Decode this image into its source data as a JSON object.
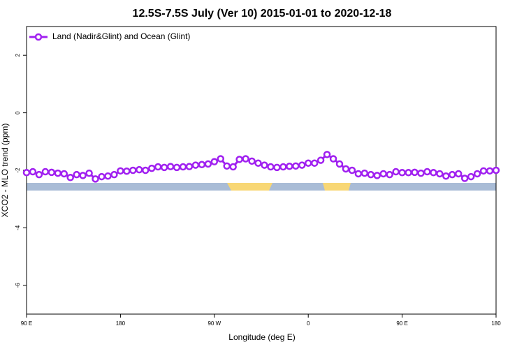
{
  "chart_data": {
    "type": "line",
    "title": "12.5S-7.5S July (Ver 10)   2015-01-01 to 2020-12-18",
    "xlabel": "Longitude (deg E)",
    "ylabel": "XCO2 - MLO trend (ppm)",
    "xlim": [
      90,
      540
    ],
    "ylim": [
      -7,
      3
    ],
    "xticks": [
      {
        "value": 90,
        "label": "90 E"
      },
      {
        "value": 180,
        "label": "180"
      },
      {
        "value": 270,
        "label": "90 W"
      },
      {
        "value": 360,
        "label": "0"
      },
      {
        "value": 450,
        "label": "90 E"
      },
      {
        "value": 540,
        "label": "180"
      }
    ],
    "yticks": [
      -6,
      -4,
      -2,
      0,
      2
    ],
    "legend": "top-left",
    "x": [
      90,
      96,
      102,
      108,
      114,
      120,
      126,
      132,
      138,
      144,
      150,
      156,
      162,
      168,
      174,
      180,
      186,
      192,
      198,
      204,
      210,
      216,
      222,
      228,
      234,
      240,
      246,
      252,
      258,
      264,
      270,
      276,
      282,
      288,
      294,
      300,
      306,
      312,
      318,
      324,
      330,
      336,
      342,
      348,
      354,
      360,
      366,
      372,
      378,
      384,
      390,
      396,
      402,
      408,
      414,
      420,
      426,
      432,
      438,
      444,
      450,
      456,
      462,
      468,
      474,
      480,
      486,
      492,
      498,
      504,
      510,
      516,
      522,
      528,
      534,
      540
    ],
    "series": [
      {
        "name": "Land (Nadir&Glint) and Ocean (Glint)",
        "color": "#a020f0",
        "values": [
          -2.08,
          -2.05,
          -2.15,
          -2.05,
          -2.07,
          -2.1,
          -2.12,
          -2.25,
          -2.15,
          -2.18,
          -2.1,
          -2.3,
          -2.22,
          -2.2,
          -2.15,
          -2.02,
          -2.03,
          -2.0,
          -1.98,
          -2.0,
          -1.93,
          -1.88,
          -1.9,
          -1.87,
          -1.9,
          -1.88,
          -1.87,
          -1.82,
          -1.8,
          -1.78,
          -1.7,
          -1.6,
          -1.85,
          -1.88,
          -1.62,
          -1.6,
          -1.68,
          -1.75,
          -1.82,
          -1.88,
          -1.9,
          -1.88,
          -1.86,
          -1.85,
          -1.82,
          -1.75,
          -1.75,
          -1.65,
          -1.45,
          -1.6,
          -1.78,
          -1.95,
          -2.0,
          -2.12,
          -2.1,
          -2.15,
          -2.18,
          -2.12,
          -2.15,
          -2.05,
          -2.08,
          -2.08,
          -2.07,
          -2.1,
          -2.05,
          -2.08,
          -2.12,
          -2.2,
          -2.15,
          -2.12,
          -2.28,
          -2.22,
          -2.12,
          -2.02,
          -2.02,
          -2.0
        ]
      }
    ]
  }
}
